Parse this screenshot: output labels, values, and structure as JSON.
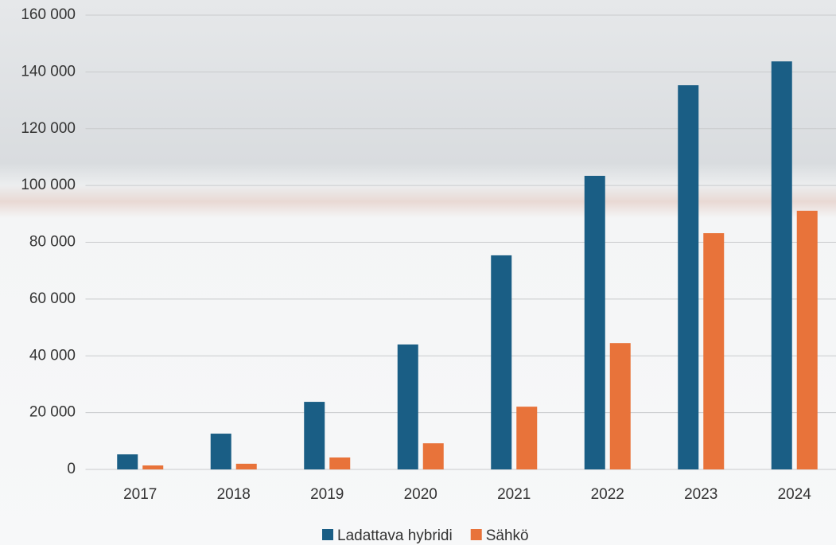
{
  "chart_data": {
    "type": "bar",
    "categories": [
      "2017",
      "2018",
      "2019",
      "2020",
      "2021",
      "2022",
      "2023",
      "2024"
    ],
    "series": [
      {
        "name": "Ladattava hybridi",
        "color": "#1a5e85",
        "values": [
          5300,
          12600,
          23800,
          44000,
          75400,
          103400,
          135300,
          143700
        ]
      },
      {
        "name": "Sähkö",
        "color": "#e8733a",
        "values": [
          1400,
          2000,
          4200,
          9200,
          22100,
          44500,
          83200,
          91100
        ]
      }
    ],
    "ylim": [
      0,
      160000
    ],
    "yticks": [
      0,
      {
        "value": 20000,
        "label": "20 000"
      },
      {
        "value": 40000,
        "label": "40 000"
      },
      {
        "value": 60000,
        "label": "60 000"
      },
      {
        "value": 80000,
        "label": "80 000"
      },
      {
        "value": 100000,
        "label": "100 000"
      },
      {
        "value": 120000,
        "label": "120 000"
      },
      {
        "value": 140000,
        "label": "140 000"
      },
      {
        "value": 160000,
        "label": "160 000"
      }
    ],
    "grid": true,
    "legend": "bottom"
  }
}
